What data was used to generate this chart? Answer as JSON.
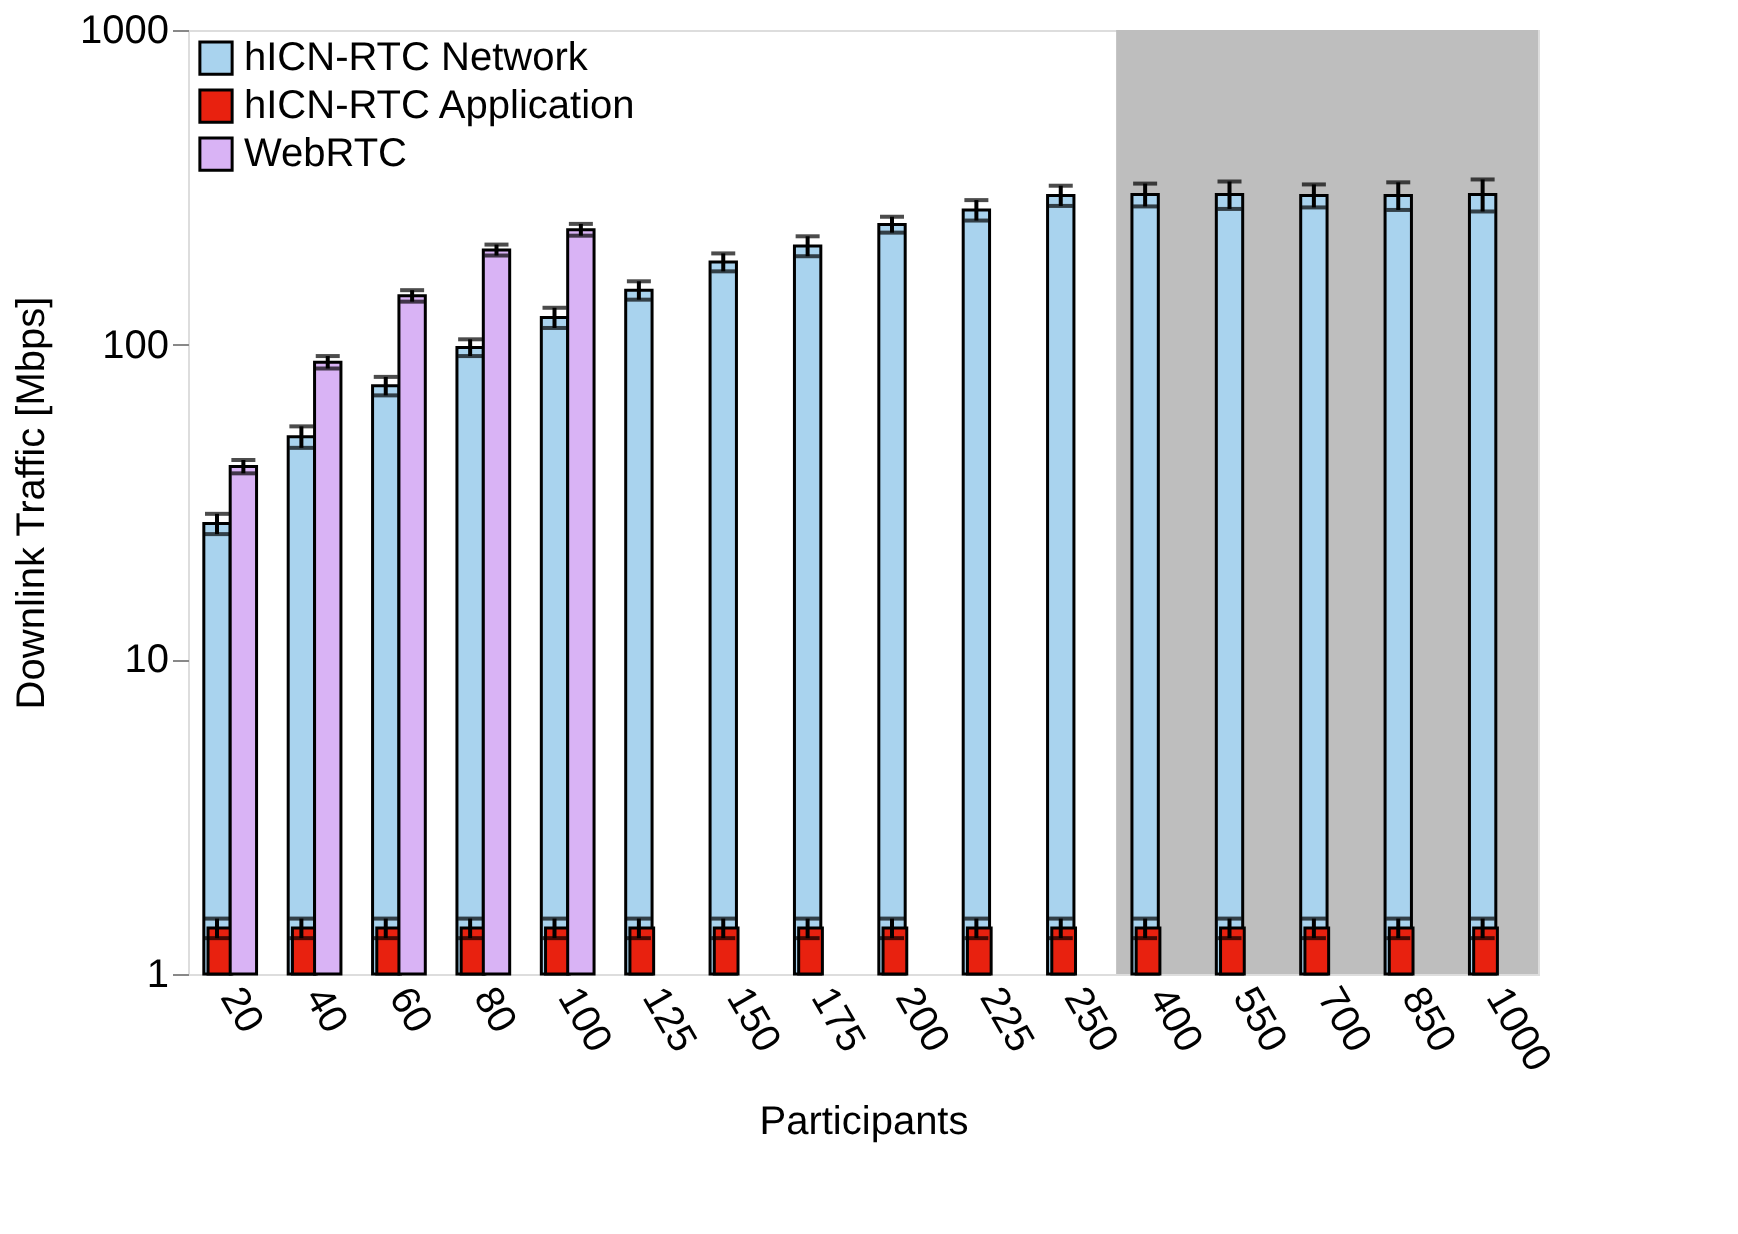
{
  "chart_data": {
    "type": "bar",
    "xlabel": "Participants",
    "ylabel": "Downlink Traffic [Mbps]",
    "categories": [
      "20",
      "40",
      "60",
      "80",
      "100",
      "125",
      "150",
      "175",
      "200",
      "225",
      "250",
      "400",
      "550",
      "700",
      "850",
      "1000"
    ],
    "series": [
      {
        "name": "hICN-RTC Network",
        "color": "#a9d3ee",
        "values": [
          27,
          51,
          74,
          98,
          122,
          149,
          183,
          206,
          241,
          268,
          298,
          300,
          300,
          298,
          298,
          300
        ],
        "errors": [
          2,
          4,
          5,
          6,
          9,
          10,
          12,
          15,
          14,
          20,
          22,
          25,
          30,
          25,
          30,
          35
        ]
      },
      {
        "name": "hICN-RTC Application",
        "color": "#e8210f",
        "values": [
          1.4,
          1.4,
          1.4,
          1.4,
          1.4,
          1.4,
          1.4,
          1.4,
          1.4,
          1.4,
          1.4,
          1.4,
          1.4,
          1.4,
          1.4,
          1.4
        ],
        "errors": [
          0.1,
          0.1,
          0.1,
          0.1,
          0.1,
          0.1,
          0.1,
          0.1,
          0.1,
          0.1,
          0.1,
          0.1,
          0.1,
          0.1,
          0.1,
          0.1
        ]
      },
      {
        "name": "WebRTC",
        "color": "#d9b3f5",
        "values": [
          41,
          88,
          143,
          200,
          232,
          null,
          null,
          null,
          null,
          null,
          null,
          null,
          null,
          null,
          null,
          null
        ],
        "errors": [
          2,
          4,
          6,
          8,
          10,
          null,
          null,
          null,
          null,
          null,
          null,
          null,
          null,
          null,
          null,
          null
        ]
      }
    ],
    "ylim": [
      1,
      1000
    ],
    "yticks": [
      1,
      10,
      100,
      1000
    ],
    "log": true,
    "grid": false,
    "legend": "top left"
  }
}
